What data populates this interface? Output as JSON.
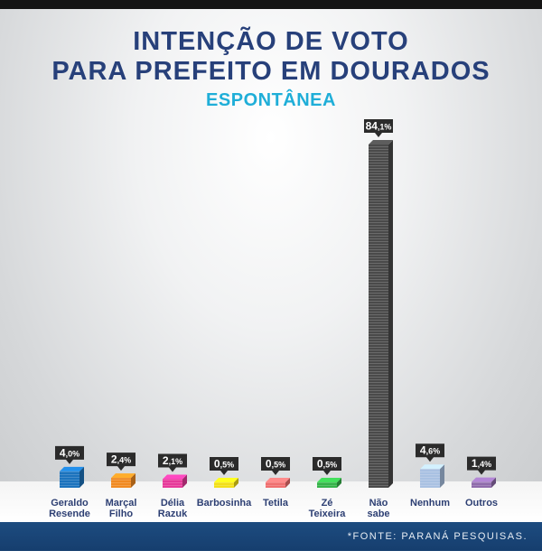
{
  "header": {
    "title_line1": "INTENÇÃO DE VOTO",
    "title_line2": "PARA PREFEITO EM DOURADOS",
    "subtitle": "ESPONTÂNEA"
  },
  "footer": {
    "source": "*FONTE:  PARANÁ  PESQUISAS."
  },
  "chart_data": {
    "type": "bar",
    "title": "INTENÇÃO DE VOTO PARA PREFEITO EM DOURADOS",
    "subtitle": "ESPONTÂNEA",
    "categories": [
      [
        "Geraldo",
        "Resende"
      ],
      [
        "Marçal",
        "Filho"
      ],
      [
        "Délia",
        "Razuk"
      ],
      [
        "Barbosinha"
      ],
      [
        "Tetila"
      ],
      [
        "Zé",
        "Teixeira"
      ],
      [
        "Não",
        "sabe"
      ],
      [
        "Nenhum"
      ],
      [
        "Outros"
      ]
    ],
    "values": [
      4.0,
      2.4,
      2.1,
      0.5,
      0.5,
      0.5,
      84.1,
      4.6,
      1.4
    ],
    "value_labels": [
      {
        "int": "4",
        "dec": ",0%"
      },
      {
        "int": "2",
        "dec": ",4%"
      },
      {
        "int": "2",
        "dec": ",1%"
      },
      {
        "int": "0",
        "dec": ",5%"
      },
      {
        "int": "0",
        "dec": ",5%"
      },
      {
        "int": "0",
        "dec": ",5%"
      },
      {
        "int": "84",
        "dec": ",1%"
      },
      {
        "int": "4",
        "dec": ",6%"
      },
      {
        "int": "1",
        "dec": ",4%"
      }
    ],
    "colors": [
      "#1c73bd",
      "#f08a22",
      "#e63a9a",
      "#f2df19",
      "#ef6f6f",
      "#36b34a",
      "#4a4a4a",
      "#a9c1e2",
      "#8f6bab"
    ],
    "ylim": [
      0,
      100
    ],
    "grid": false,
    "legend": "none"
  }
}
